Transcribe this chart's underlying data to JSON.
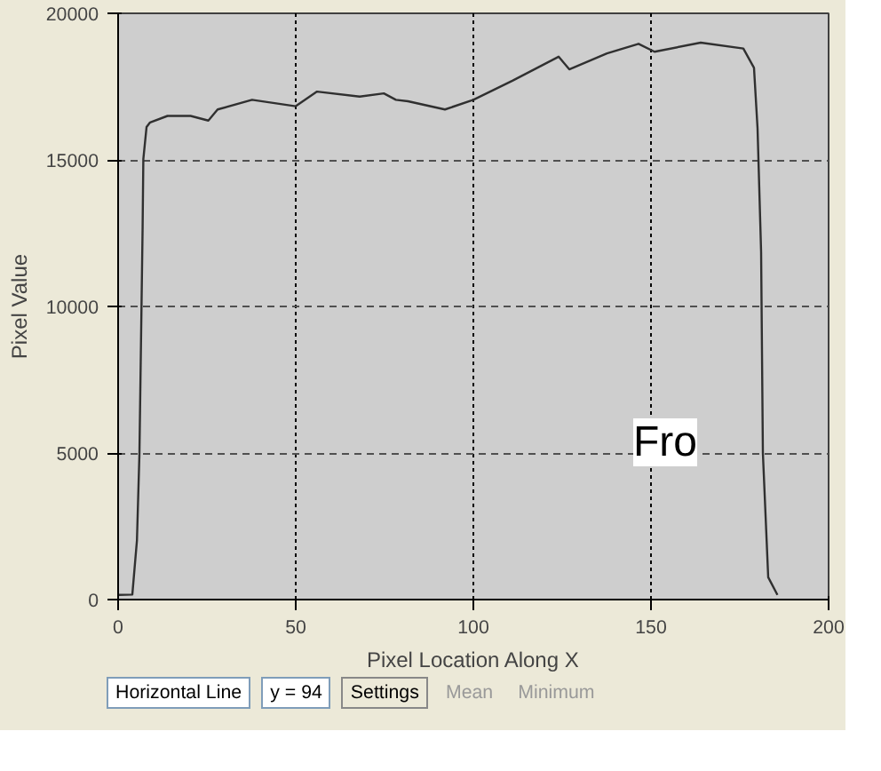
{
  "chart_data": {
    "type": "line",
    "xlabel": "Pixel Location Along X",
    "ylabel": "Pixel Value",
    "x": [
      0,
      4,
      5.3,
      6,
      6.9,
      7.1,
      8,
      9,
      13.9,
      20.4,
      25.4,
      28,
      37.7,
      50,
      56,
      68,
      74.8,
      78.2,
      81.6,
      92,
      100,
      111,
      124,
      127,
      137.6,
      146.5,
      151,
      164,
      176,
      179,
      180,
      181,
      181.5,
      183,
      185.6
    ],
    "series": [
      {
        "color": "#303030",
        "values": [
          160,
          170,
          2020,
          4970,
          12730,
          15030,
          16120,
          16280,
          16500,
          16500,
          16340,
          16720,
          17050,
          16830,
          17330,
          17160,
          17270,
          17050,
          17000,
          16720,
          17050,
          17700,
          18520,
          18090,
          18630,
          18960,
          18690,
          19000,
          18800,
          18140,
          16070,
          11860,
          5000,
          760,
          160
        ]
      }
    ],
    "xlim": [
      0,
      200
    ],
    "ylim": [
      0,
      20000
    ],
    "xticks": [
      0,
      50,
      100,
      150,
      200
    ],
    "yticks": [
      0,
      5000,
      10000,
      15000,
      20000
    ],
    "grid": true,
    "marker": "none",
    "line_style": "solid",
    "annotations": [
      "Horizontal Line",
      "y = 94",
      "Settings",
      "Mean",
      "Minimum",
      "Fro"
    ]
  }
}
